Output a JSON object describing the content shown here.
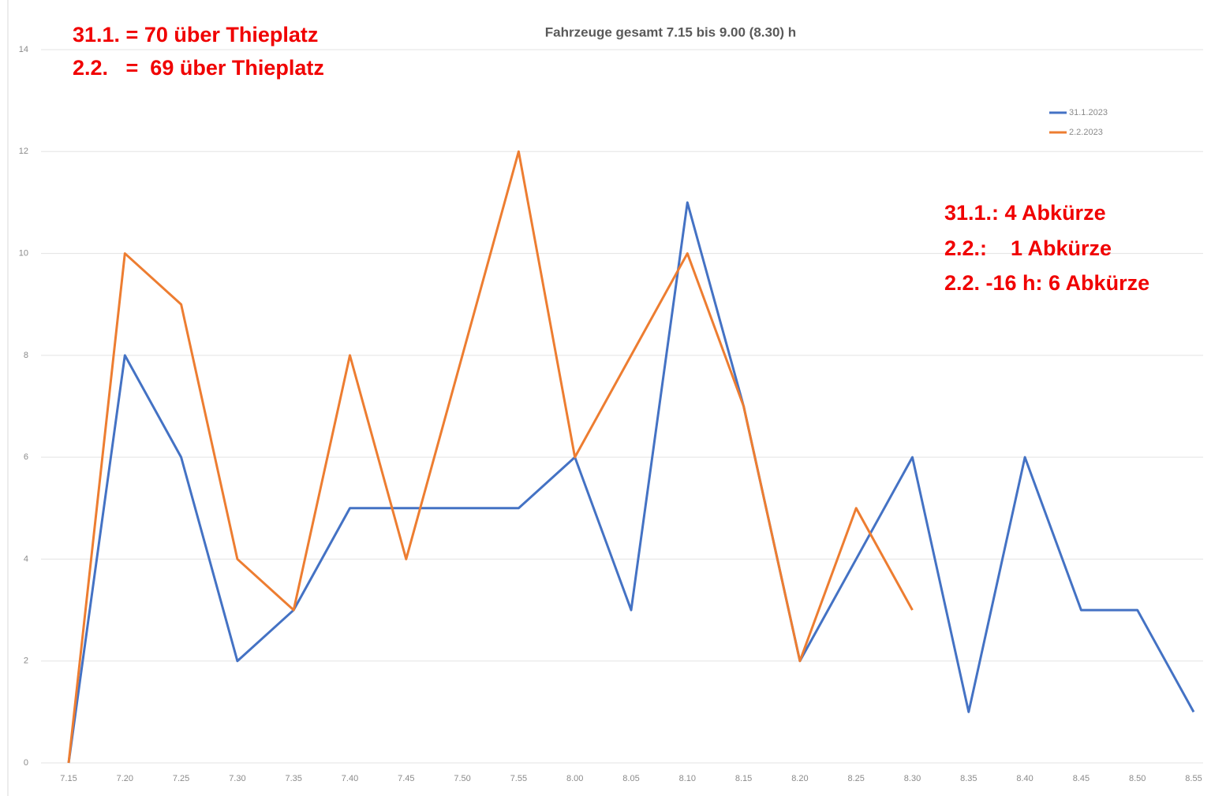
{
  "chart_data": {
    "type": "line",
    "title": "Fahrzeuge gesamt 7.15 bis 9.00 (8.30) h",
    "categories": [
      "7.15",
      "7.20",
      "7.25",
      "7.30",
      "7.35",
      "7.40",
      "7.45",
      "7.50",
      "7.55",
      "8.00",
      "8.05",
      "8.10",
      "8.15",
      "8.20",
      "8.25",
      "8.30",
      "8.35",
      "8.40",
      "8.45",
      "8.50",
      "8.55"
    ],
    "series": [
      {
        "name": "31.1.2023",
        "color": "#4472c4",
        "values": [
          0,
          8,
          6,
          2,
          3,
          5,
          5,
          5,
          5,
          6,
          3,
          11,
          7,
          2,
          4,
          6,
          1,
          6,
          3,
          3,
          1
        ]
      },
      {
        "name": "2.2.2023",
        "color": "#ed7d31",
        "values": [
          0,
          10,
          9,
          4,
          3,
          8,
          4,
          8,
          12,
          6,
          8,
          10,
          7,
          2,
          5,
          3,
          null,
          null,
          null,
          null,
          null
        ]
      }
    ],
    "ylim": [
      0,
      14
    ],
    "yticks": [
      0,
      2,
      4,
      6,
      8,
      10,
      12,
      14
    ],
    "grid": true,
    "annotations": [
      "31.1. = 70 über Thieplatz",
      "2.2.   =  69 über Thieplatz",
      "31.1.: 4 Abkürze",
      "2.2.:    1 Abkürze",
      "2.2. -16 h: 6 Abkürze"
    ]
  }
}
